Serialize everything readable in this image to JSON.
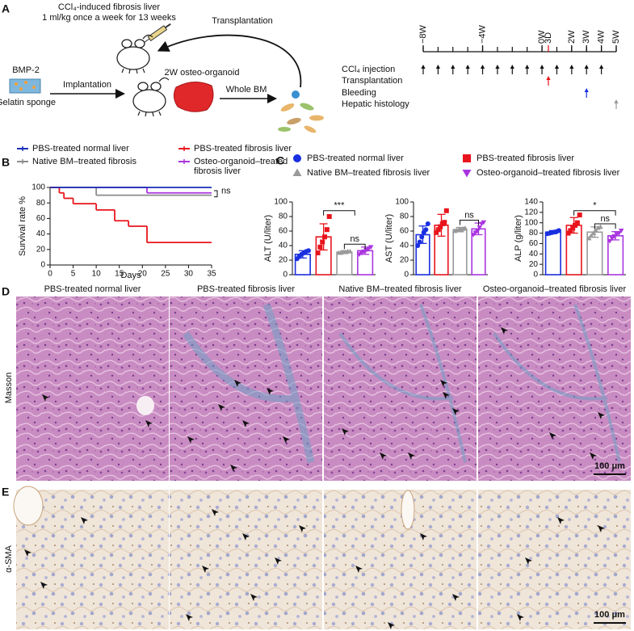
{
  "panel_labels": [
    "A",
    "B",
    "C",
    "D",
    "E"
  ],
  "schematic": {
    "title": "CCl₄-induced fibrosis liver",
    "dose": "1 ml/kg once a week for 13 weeks",
    "transplantation": "Transplantation",
    "bmp": "BMP-2",
    "sponge": "Gelatin sponge",
    "implantation": "Implantation",
    "organoid": "2W osteo-organoid",
    "whole_bm": "Whole BM"
  },
  "timeline": {
    "xlim": [
      -8,
      5
    ],
    "ticks": [
      -8,
      -7,
      -6,
      -5,
      -4,
      -3,
      -2,
      -1,
      0,
      1,
      2,
      3,
      4,
      5
    ],
    "tick_labels": [
      {
        "value": -8,
        "label": "−8W"
      },
      {
        "value": -4,
        "label": "−4W"
      },
      {
        "value": 0,
        "label": "0W"
      },
      {
        "value": 0.43,
        "label": "3D"
      },
      {
        "value": 2,
        "label": "2W"
      },
      {
        "value": 3,
        "label": "3W"
      },
      {
        "value": 4,
        "label": "4W"
      },
      {
        "value": 5,
        "label": "5W"
      }
    ],
    "rows": [
      {
        "name": "CCl₄ injection",
        "color": "#111111",
        "weeks": [
          -8,
          -7,
          -6,
          -5,
          -4,
          -3,
          -2,
          -1,
          0,
          1,
          2,
          3,
          4
        ]
      },
      {
        "name": "Transplantation",
        "color": "#e8141c",
        "weeks": [
          0.43
        ]
      },
      {
        "name": "Bleeding",
        "color": "#1a2fe0",
        "weeks": [
          3
        ]
      },
      {
        "name": "Hepatic histology",
        "color": "#9a9a9a",
        "weeks": [
          5
        ]
      }
    ]
  },
  "chart_data": [
    {
      "type": "step",
      "xlabel": "Days",
      "ylabel": "Survival rate %",
      "xlim": [
        0,
        35
      ],
      "xticks": [
        0,
        5,
        10,
        15,
        20,
        25,
        30,
        35
      ],
      "ylim": [
        0,
        100
      ],
      "yticks": [
        0,
        20,
        40,
        60,
        80,
        100
      ],
      "annotation": "ns",
      "series": [
        {
          "name": "PBS-treated normal liver",
          "color": "#1a2fb5",
          "x": [
            0,
            35
          ],
          "values": [
            100,
            100
          ]
        },
        {
          "name": "PBS-treated fibrosis liver",
          "color": "#e8141c",
          "x": [
            0,
            2,
            3,
            5,
            10,
            14,
            17,
            21,
            35
          ],
          "values": [
            100,
            93,
            86,
            79,
            71,
            57,
            50,
            29,
            29
          ]
        },
        {
          "name": "Native BM–treated fibrosis",
          "color": "#8c8c8c",
          "x": [
            0,
            10,
            35
          ],
          "values": [
            100,
            90,
            90
          ]
        },
        {
          "name": "Osteo-organoid–treated fibrosis liver",
          "color": "#a935e0",
          "x": [
            0,
            21,
            35
          ],
          "values": [
            100,
            93,
            93
          ]
        }
      ]
    },
    {
      "type": "bar",
      "ylabel": "ALT (U/liter)",
      "ylim": [
        0,
        100
      ],
      "yticks": [
        0,
        20,
        40,
        60,
        80,
        100
      ],
      "values": [
        28,
        52,
        31,
        33
      ],
      "errors": [
        5,
        18,
        2,
        5
      ],
      "points": [
        [
          22,
          25,
          28,
          30,
          32,
          33
        ],
        [
          30,
          38,
          45,
          52,
          62,
          80
        ],
        [
          30,
          30,
          31,
          31,
          32,
          32
        ],
        [
          28,
          30,
          32,
          34,
          36,
          38
        ]
      ],
      "annotations": [
        "***",
        "ns"
      ]
    },
    {
      "type": "bar",
      "ylabel": "AST (U/liter)",
      "ylim": [
        0,
        100
      ],
      "yticks": [
        0,
        20,
        40,
        60,
        80,
        100
      ],
      "values": [
        55,
        68,
        62,
        63
      ],
      "errors": [
        12,
        15,
        3,
        8
      ],
      "points": [
        [
          40,
          45,
          52,
          58,
          62,
          70
        ],
        [
          58,
          62,
          66,
          70,
          72,
          88
        ],
        [
          60,
          61,
          62,
          62,
          63,
          64
        ],
        [
          55,
          58,
          60,
          65,
          70,
          72
        ]
      ],
      "annotations": [
        "ns"
      ]
    },
    {
      "type": "bar",
      "ylabel": "ALP (g/liter)",
      "ylim": [
        0,
        140
      ],
      "yticks": [
        0,
        20,
        40,
        60,
        80,
        100,
        120,
        140
      ],
      "values": [
        82,
        95,
        82,
        75
      ],
      "errors": [
        3,
        15,
        10,
        8
      ],
      "points": [
        [
          79,
          80,
          81,
          82,
          83,
          85
        ],
        [
          80,
          85,
          90,
          95,
          100,
          115
        ],
        [
          70,
          75,
          80,
          85,
          90,
          92
        ],
        [
          65,
          70,
          74,
          78,
          80,
          85
        ]
      ],
      "annotations": [
        "*",
        "ns"
      ]
    }
  ],
  "panel_c_legend": [
    {
      "name": "PBS-treated normal liver",
      "color": "#1a2fe0",
      "marker": "circle"
    },
    {
      "name": "PBS-treated fibrosis liver",
      "color": "#e8141c",
      "marker": "square"
    },
    {
      "name": "Native BM–treated fibrosis liver",
      "color": "#9a9a9a",
      "marker": "triangle"
    },
    {
      "name": "Osteo-organoid–treated fibrosis liver",
      "color": "#a935e0",
      "marker": "triangle-down"
    }
  ],
  "micrographs": {
    "columns": [
      "PBS-treated normal liver",
      "PBS-treated fibrosis liver",
      "Native BM–treated fibrosis liver",
      "Osteo-organoid–treated fibrosis liver"
    ],
    "rows": [
      "Masson",
      "α-SMA"
    ],
    "scale_bar": "100 μm"
  }
}
